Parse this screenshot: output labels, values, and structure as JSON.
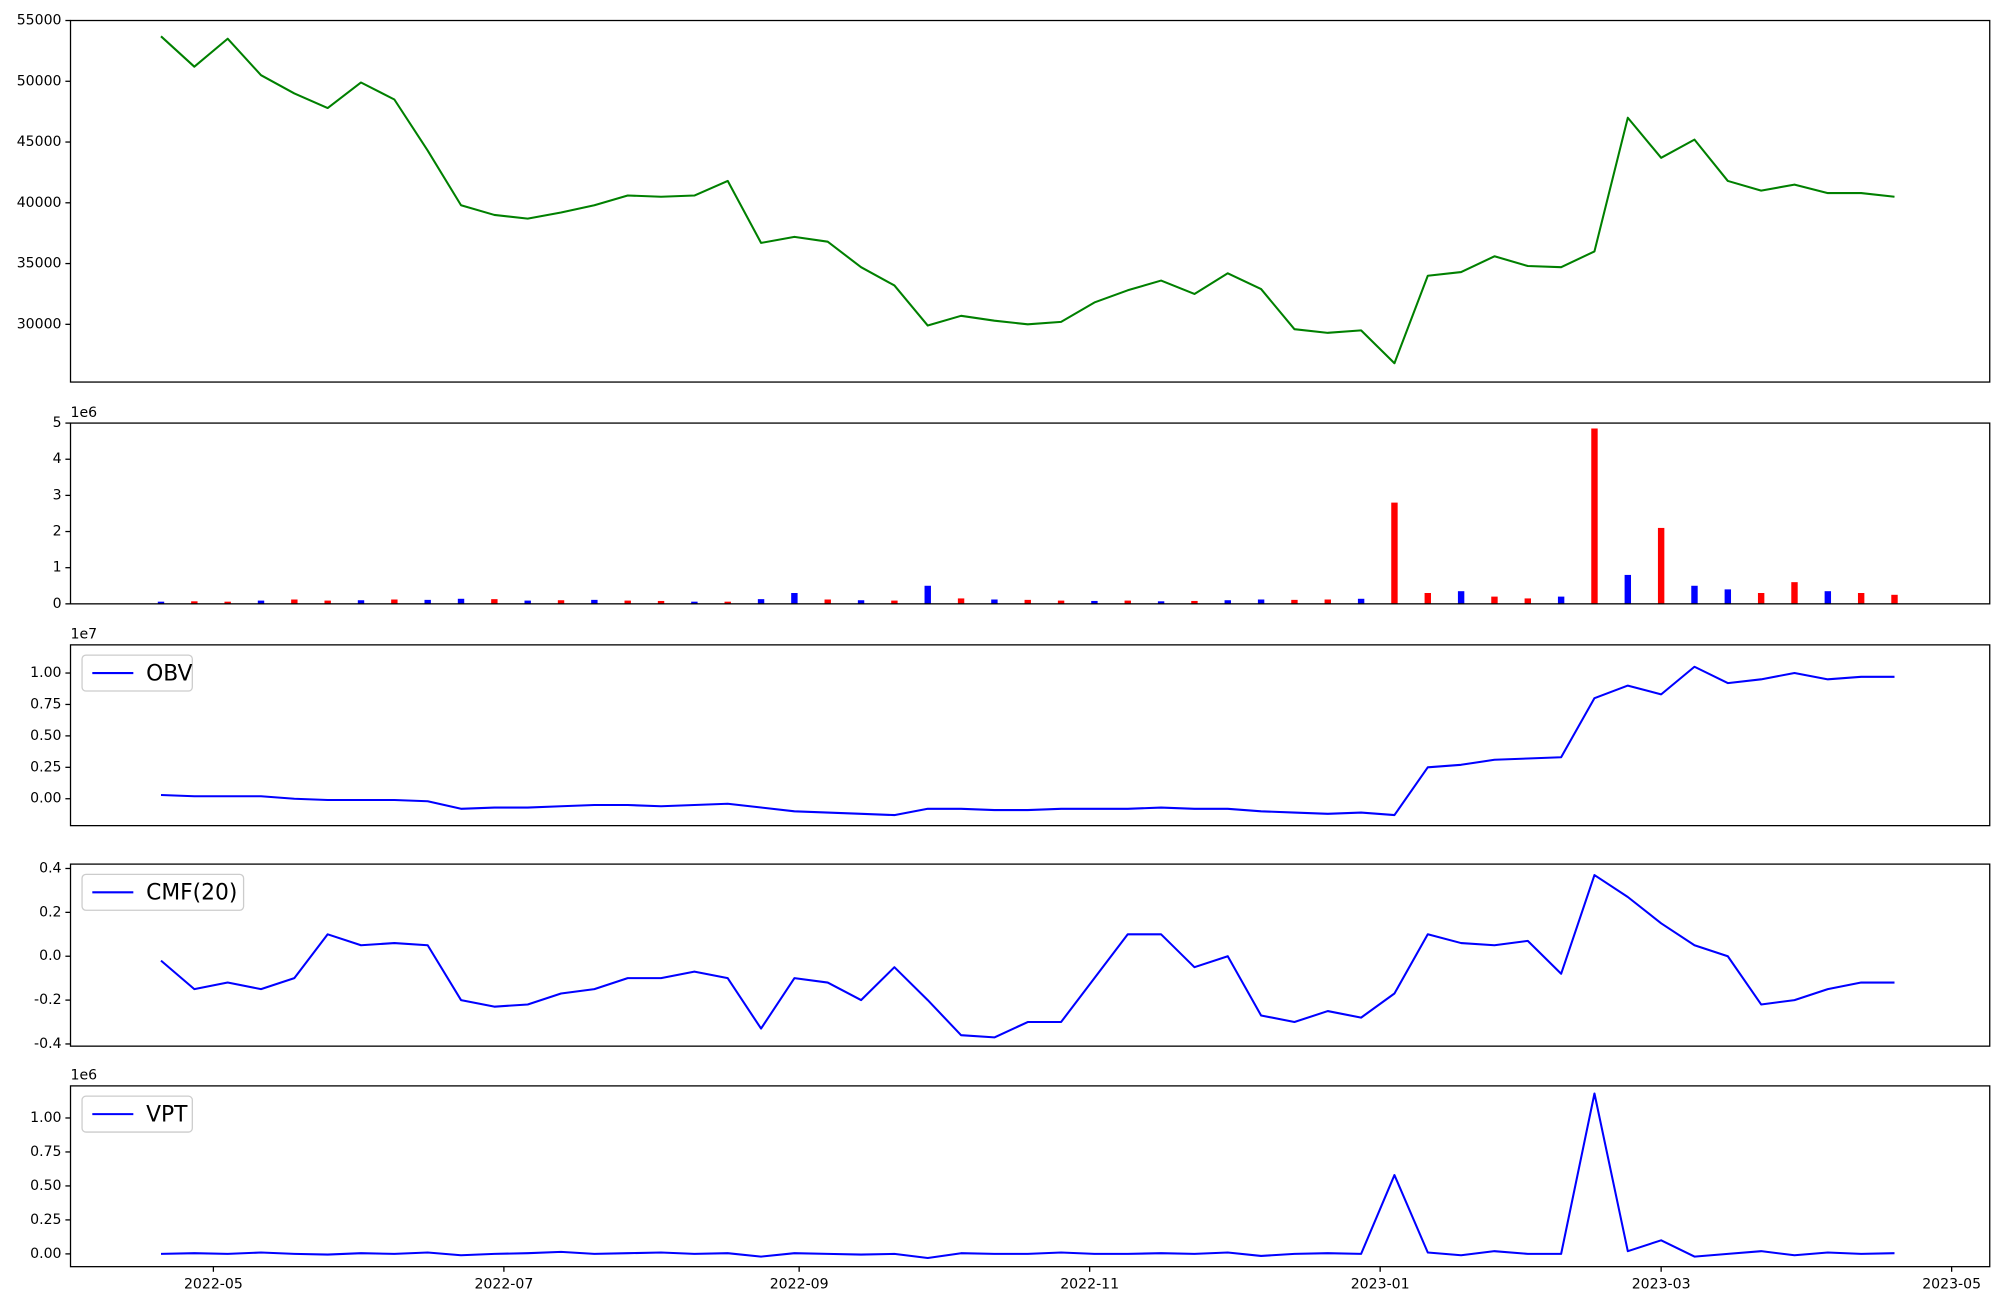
{
  "chart_data": [
    {
      "type": "line",
      "color": "green",
      "x": [
        19102,
        19109,
        19116,
        19123,
        19130,
        19137,
        19144,
        19151,
        19158,
        19165,
        19172,
        19179,
        19186,
        19193,
        19200,
        19207,
        19214,
        19221,
        19228,
        19235,
        19242,
        19249,
        19256,
        19263,
        19270,
        19277,
        19284,
        19291,
        19298,
        19305,
        19312,
        19319,
        19326,
        19333,
        19340,
        19347,
        19354,
        19361,
        19368,
        19375,
        19382,
        19389,
        19396,
        19403,
        19410,
        19417,
        19424,
        19431,
        19438,
        19445,
        19452,
        19459,
        19466
      ],
      "values": [
        53700,
        51200,
        53500,
        50500,
        49000,
        47800,
        49900,
        48500,
        44300,
        39800,
        39000,
        38700,
        39200,
        39800,
        40600,
        40500,
        40600,
        41800,
        36700,
        37200,
        36800,
        34700,
        33200,
        29900,
        30700,
        30300,
        30000,
        30200,
        31800,
        32800,
        33600,
        32500,
        34200,
        32900,
        29600,
        29300,
        29500,
        26800,
        34000,
        34300,
        35600,
        34800,
        34700,
        36000,
        47000,
        43700,
        45200,
        41800,
        41000,
        41500,
        40800,
        40800,
        40500
      ],
      "xlim": [
        19083,
        19486
      ],
      "ylim": [
        25250,
        55000
      ],
      "yticks": [
        30000,
        35000,
        40000,
        45000,
        50000,
        55000
      ]
    },
    {
      "type": "bar",
      "offset_label": "1e6",
      "x": [
        19102,
        19109,
        19116,
        19123,
        19130,
        19137,
        19144,
        19151,
        19158,
        19165,
        19172,
        19179,
        19186,
        19193,
        19200,
        19207,
        19214,
        19221,
        19228,
        19235,
        19242,
        19249,
        19256,
        19263,
        19270,
        19277,
        19284,
        19291,
        19298,
        19305,
        19312,
        19319,
        19326,
        19333,
        19340,
        19347,
        19354,
        19361,
        19368,
        19375,
        19382,
        19389,
        19396,
        19403,
        19410,
        19417,
        19424,
        19431,
        19438,
        19445,
        19452,
        19459,
        19466
      ],
      "values": [
        60000,
        70000,
        60000,
        90000,
        120000,
        90000,
        100000,
        120000,
        110000,
        140000,
        130000,
        90000,
        100000,
        110000,
        90000,
        80000,
        60000,
        60000,
        130000,
        300000,
        120000,
        100000,
        90000,
        500000,
        150000,
        120000,
        110000,
        90000,
        80000,
        90000,
        70000,
        80000,
        100000,
        120000,
        110000,
        120000,
        140000,
        2800000,
        300000,
        350000,
        200000,
        150000,
        200000,
        4850000,
        800000,
        2100000,
        500000,
        400000,
        300000,
        600000,
        350000,
        300000,
        250000
      ],
      "colors": [
        "blue",
        "red",
        "red",
        "blue",
        "red",
        "red",
        "blue",
        "red",
        "blue",
        "blue",
        "red",
        "blue",
        "red",
        "blue",
        "red",
        "red",
        "blue",
        "red",
        "blue",
        "blue",
        "red",
        "blue",
        "red",
        "blue",
        "red",
        "blue",
        "red",
        "red",
        "blue",
        "red",
        "blue",
        "red",
        "blue",
        "blue",
        "red",
        "red",
        "blue",
        "red",
        "red",
        "blue",
        "red",
        "red",
        "blue",
        "red",
        "blue",
        "red",
        "blue",
        "blue",
        "red",
        "red",
        "blue",
        "red",
        "red"
      ],
      "xlim": [
        19083,
        19486
      ],
      "ylim": [
        0,
        5000000
      ],
      "yticks": [
        0,
        {
          "value": 1000000,
          "label": "1"
        },
        {
          "value": 2000000,
          "label": "2"
        },
        {
          "value": 3000000,
          "label": "3"
        },
        {
          "value": 4000000,
          "label": "4"
        },
        {
          "value": 5000000,
          "label": "5"
        }
      ]
    },
    {
      "type": "line",
      "offset_label": "1e7",
      "legend": "upper left",
      "x": [
        19102,
        19109,
        19116,
        19123,
        19130,
        19137,
        19144,
        19151,
        19158,
        19165,
        19172,
        19179,
        19186,
        19193,
        19200,
        19207,
        19214,
        19221,
        19228,
        19235,
        19242,
        19249,
        19256,
        19263,
        19270,
        19277,
        19284,
        19291,
        19298,
        19305,
        19312,
        19319,
        19326,
        19333,
        19340,
        19347,
        19354,
        19361,
        19368,
        19375,
        19382,
        19389,
        19396,
        19403,
        19410,
        19417,
        19424,
        19431,
        19438,
        19445,
        19452,
        19459,
        19466
      ],
      "series": [
        {
          "name": "OBV",
          "color": "blue",
          "values": [
            300000,
            200000,
            200000,
            200000,
            0,
            -100000,
            -100000,
            -100000,
            -200000,
            -800000,
            -700000,
            -700000,
            -600000,
            -500000,
            -500000,
            -600000,
            -500000,
            -400000,
            -700000,
            -1000000,
            -1100000,
            -1200000,
            -1300000,
            -800000,
            -800000,
            -900000,
            -900000,
            -800000,
            -800000,
            -800000,
            -700000,
            -800000,
            -800000,
            -1000000,
            -1100000,
            -1200000,
            -1100000,
            -1300000,
            2500000,
            2700000,
            3100000,
            3200000,
            3300000,
            8000000,
            9000000,
            8300000,
            10500000,
            9200000,
            9500000,
            10000000,
            9500000,
            9700000,
            9700000
          ]
        }
      ],
      "xlim": [
        19083,
        19486
      ],
      "ylim": [
        -2140000,
        12240000
      ],
      "yticks": [
        {
          "value": 0,
          "label": "0.00"
        },
        {
          "value": 2500000,
          "label": "0.25"
        },
        {
          "value": 5000000,
          "label": "0.50"
        },
        {
          "value": 7500000,
          "label": "0.75"
        },
        {
          "value": 10000000,
          "label": "1.00"
        }
      ]
    },
    {
      "type": "line",
      "legend": "upper left",
      "x": [
        19102,
        19109,
        19116,
        19123,
        19130,
        19137,
        19144,
        19151,
        19158,
        19165,
        19172,
        19179,
        19186,
        19193,
        19200,
        19207,
        19214,
        19221,
        19228,
        19235,
        19242,
        19249,
        19256,
        19263,
        19270,
        19277,
        19284,
        19291,
        19298,
        19305,
        19312,
        19319,
        19326,
        19333,
        19340,
        19347,
        19354,
        19361,
        19368,
        19375,
        19382,
        19389,
        19396,
        19403,
        19410,
        19417,
        19424,
        19431,
        19438,
        19445,
        19452,
        19459,
        19466
      ],
      "series": [
        {
          "name": "CMF(20)",
          "color": "blue",
          "values": [
            -0.02,
            -0.15,
            -0.12,
            -0.15,
            -0.1,
            0.1,
            0.05,
            0.06,
            0.05,
            -0.2,
            -0.23,
            -0.22,
            -0.17,
            -0.15,
            -0.1,
            -0.1,
            -0.07,
            -0.1,
            -0.33,
            -0.1,
            -0.12,
            -0.2,
            -0.05,
            -0.2,
            -0.36,
            -0.37,
            -0.3,
            -0.3,
            -0.1,
            0.1,
            0.1,
            -0.05,
            0.0,
            -0.27,
            -0.3,
            -0.25,
            -0.28,
            -0.17,
            0.1,
            0.06,
            0.05,
            0.07,
            -0.08,
            0.37,
            0.27,
            0.15,
            0.05,
            0.0,
            -0.22,
            -0.2,
            -0.15,
            -0.12,
            -0.12
          ]
        }
      ],
      "xlim": [
        19083,
        19486
      ],
      "ylim": [
        -0.41,
        0.42
      ],
      "yticks": [
        -0.4,
        -0.2,
        {
          "value": 0,
          "label": "0.0"
        },
        0.2,
        0.4
      ]
    },
    {
      "type": "line",
      "offset_label": "1e6",
      "legend": "upper left",
      "x": [
        19102,
        19109,
        19116,
        19123,
        19130,
        19137,
        19144,
        19151,
        19158,
        19165,
        19172,
        19179,
        19186,
        19193,
        19200,
        19207,
        19214,
        19221,
        19228,
        19235,
        19242,
        19249,
        19256,
        19263,
        19270,
        19277,
        19284,
        19291,
        19298,
        19305,
        19312,
        19319,
        19326,
        19333,
        19340,
        19347,
        19354,
        19361,
        19368,
        19375,
        19382,
        19389,
        19396,
        19403,
        19410,
        19417,
        19424,
        19431,
        19438,
        19445,
        19452,
        19459,
        19466
      ],
      "series": [
        {
          "name": "VPT",
          "color": "blue",
          "values": [
            0,
            5000,
            0,
            10000,
            0,
            -5000,
            5000,
            0,
            10000,
            -10000,
            0,
            5000,
            15000,
            0,
            5000,
            10000,
            0,
            5000,
            -20000,
            5000,
            0,
            -5000,
            0,
            -30000,
            5000,
            0,
            0,
            10000,
            0,
            0,
            5000,
            0,
            10000,
            -15000,
            0,
            5000,
            0,
            580000,
            10000,
            -10000,
            20000,
            0,
            0,
            1180000,
            20000,
            100000,
            -20000,
            0,
            20000,
            -10000,
            10000,
            0,
            5000
          ]
        }
      ],
      "xlim": [
        19083,
        19486
      ],
      "ylim": [
        -94000,
        1236000
      ],
      "yticks": [
        {
          "value": 0,
          "label": "0.00"
        },
        {
          "value": 250000,
          "label": "0.25"
        },
        {
          "value": 500000,
          "label": "0.50"
        },
        {
          "value": 750000,
          "label": "0.75"
        },
        {
          "value": 1000000,
          "label": "1.00"
        }
      ],
      "xticks": [
        {
          "value": 19113,
          "label": "2022-05"
        },
        {
          "value": 19174,
          "label": "2022-07"
        },
        {
          "value": 19236,
          "label": "2022-09"
        },
        {
          "value": 19297,
          "label": "2022-11"
        },
        {
          "value": 19358,
          "label": "2023-01"
        },
        {
          "value": 19417,
          "label": "2023-03"
        },
        {
          "value": 19478,
          "label": "2023-05"
        }
      ]
    }
  ]
}
